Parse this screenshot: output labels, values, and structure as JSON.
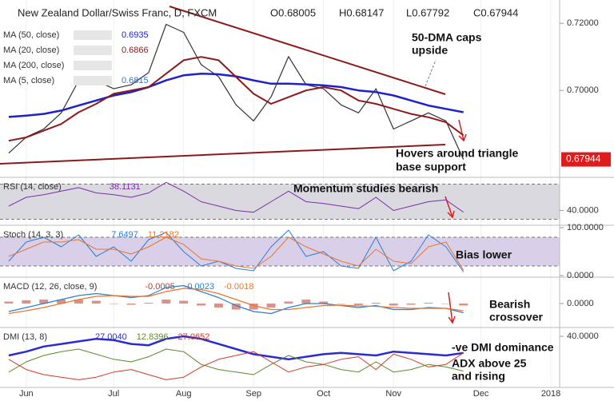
{
  "chart_data": [
    {
      "type": "line",
      "title": "New Zealand Dollar/Swiss Franc, D, FXCM",
      "ohlc": [
        "O0.68005",
        "H0.68147",
        "L0.67792",
        "C0.67944"
      ],
      "categories": [
        null,
        "Jun",
        null,
        null,
        null,
        null,
        "Jul",
        null,
        null,
        null,
        "Aug",
        null,
        null,
        null,
        "Sep",
        null,
        null,
        null,
        "Oct",
        null,
        null,
        null,
        "Nov",
        null,
        null,
        null,
        null,
        "Dec",
        null,
        null,
        null,
        "2018"
      ],
      "ylim": [
        0.676,
        0.726
      ],
      "yticks": [
        {
          "value": 0.72,
          "label": "0.72000"
        },
        {
          "value": 0.7,
          "label": "0.70000"
        }
      ],
      "last_price": {
        "value": 0.67944,
        "label": "0.67944"
      },
      "legend": [
        {
          "label": "MA (50, close)",
          "readout": "0.6935",
          "color": "#1e22c8"
        },
        {
          "label": "MA (20, close)",
          "readout": "0.6866",
          "color": "#8b1a1a"
        },
        {
          "label": "MA (200, close)",
          "readout": null,
          "color": "#888888"
        },
        {
          "label": "MA (5, close)",
          "readout": "0.6815",
          "color": "#3a6fd8"
        }
      ],
      "series": [
        {
          "name": "Close",
          "color": "#333333",
          "width": 1.2,
          "values": [
            0.6813,
            0.6861,
            0.6885,
            0.6933,
            0.7029,
            0.7029,
            0.7005,
            0.7017,
            0.7053,
            0.7197,
            0.7173,
            0.7077,
            0.7041,
            0.6957,
            0.6909,
            0.6981,
            0.7101,
            0.7017,
            0.7005,
            0.6957,
            0.6933,
            0.7005,
            0.6885,
            0.6909,
            0.6933,
            0.6909,
            0.67944,
            null,
            null,
            null,
            null,
            null
          ]
        },
        {
          "name": "MA (50, close)",
          "color": "#1e22c8",
          "width": 2.5,
          "values": [
            0.6921,
            0.6925,
            0.693,
            0.694,
            0.6955,
            0.697,
            0.6985,
            0.6995,
            0.701,
            0.703,
            0.7045,
            0.705,
            0.7048,
            0.7042,
            0.703,
            0.702,
            0.702,
            0.7018,
            0.7015,
            0.701,
            0.7,
            0.6995,
            0.6985,
            0.697,
            0.6955,
            0.6945,
            0.6935,
            null,
            null,
            null,
            null,
            null
          ]
        },
        {
          "name": "MA (20, close)",
          "color": "#8b1a1a",
          "width": 2,
          "values": [
            0.685,
            0.686,
            0.688,
            0.69,
            0.6935,
            0.696,
            0.699,
            0.7,
            0.701,
            0.705,
            0.709,
            0.71,
            0.709,
            0.704,
            0.699,
            0.696,
            0.698,
            0.7,
            0.701,
            0.7,
            0.697,
            0.696,
            0.6945,
            0.693,
            0.692,
            0.6905,
            0.6866,
            null,
            null,
            null,
            null,
            null
          ]
        }
      ]
    },
    {
      "type": "line",
      "title": "RSI (14, close)",
      "ylim": [
        25,
        75
      ],
      "yticks": [
        {
          "value": 40,
          "label": "40.0000"
        }
      ],
      "band": [
        30,
        70
      ],
      "band_color": "#d9d9df",
      "series": [
        {
          "name": "RSI",
          "color": "#7b2fa8",
          "width": 1,
          "readout": "38.1131",
          "values": [
            45,
            55,
            58,
            62,
            66,
            60,
            58,
            55,
            60,
            72,
            62,
            50,
            45,
            40,
            38,
            50,
            62,
            50,
            48,
            45,
            42,
            55,
            40,
            45,
            50,
            52,
            38.1131,
            null,
            null,
            null,
            null,
            null
          ]
        }
      ]
    },
    {
      "type": "line",
      "title": "Stoch (14, 3, 3)",
      "ylim": [
        0,
        100
      ],
      "yticks": [
        {
          "value": 100,
          "label": "100.0000"
        },
        {
          "value": 0,
          "label": "0.0000"
        }
      ],
      "band": [
        20,
        80
      ],
      "band_color": "#d9cfe8",
      "series": [
        {
          "name": "%K",
          "color": "#2a7fd4",
          "width": 1,
          "readout": "7.6497",
          "values": [
            30,
            70,
            80,
            60,
            85,
            40,
            60,
            30,
            75,
            90,
            50,
            20,
            30,
            15,
            10,
            60,
            95,
            40,
            50,
            20,
            15,
            80,
            10,
            30,
            85,
            60,
            7.6497,
            null,
            null,
            null,
            null,
            null
          ]
        },
        {
          "name": "%D",
          "color": "#e8772e",
          "width": 1,
          "readout": "11.2182",
          "values": [
            40,
            55,
            70,
            70,
            75,
            55,
            55,
            45,
            60,
            80,
            65,
            35,
            30,
            20,
            15,
            40,
            80,
            60,
            45,
            30,
            20,
            55,
            30,
            25,
            60,
            70,
            11.2182,
            null,
            null,
            null,
            null,
            null
          ]
        }
      ]
    },
    {
      "type": "line",
      "title": "MACD (12, 26, close, 9)",
      "ylim": [
        -0.006,
        0.006
      ],
      "yticks": [
        {
          "value": 0,
          "label": "0.0000"
        }
      ],
      "series": [
        {
          "name": "Histogram",
          "type": "bar",
          "color": "#c0392b",
          "readout": "-0.0005",
          "values": [
            0.0005,
            0.0008,
            0.001,
            0.001,
            0.001,
            0.0007,
            0,
            -0.0003,
            0.0002,
            0.001,
            0.0007,
            -0.0005,
            -0.001,
            -0.0015,
            -0.0015,
            -0.001,
            0.0005,
            0.001,
            0.0005,
            -0.0001,
            -0.0004,
            0.0002,
            -0.0005,
            -0.0003,
            0.0002,
            0,
            -0.0005,
            null,
            null,
            null,
            null,
            null
          ]
        },
        {
          "name": "MACD",
          "color": "#2a7fd4",
          "width": 1.2,
          "readout": "-0.0023",
          "values": [
            -0.002,
            -0.001,
            0,
            0.001,
            0.002,
            0.0025,
            0.002,
            0.0015,
            0.002,
            0.004,
            0.0045,
            0.003,
            0.0015,
            -0.0005,
            -0.002,
            -0.0025,
            -0.001,
            0,
            0,
            -0.0005,
            -0.001,
            -0.0005,
            -0.0015,
            -0.0015,
            -0.001,
            -0.0012,
            -0.0023,
            null,
            null,
            null,
            null,
            null
          ]
        },
        {
          "name": "Signal",
          "color": "#e8772e",
          "width": 1.2,
          "readout": "-0.0018",
          "values": [
            -0.0025,
            -0.0018,
            -0.001,
            0,
            0.001,
            0.0018,
            0.002,
            0.0018,
            0.0018,
            0.003,
            0.0038,
            0.0035,
            0.0025,
            0.001,
            -0.0005,
            -0.0015,
            -0.0015,
            -0.001,
            -0.0005,
            -0.0004,
            -0.0006,
            -0.0007,
            -0.001,
            -0.0012,
            -0.0012,
            -0.0012,
            -0.0018,
            null,
            null,
            null,
            null,
            null
          ]
        }
      ]
    },
    {
      "type": "line",
      "title": "DMI (13, 8)",
      "ylim": [
        0,
        45
      ],
      "yticks": [
        {
          "value": 40,
          "label": "40.0000"
        }
      ],
      "series": [
        {
          "name": "ADX",
          "color": "#2b2bd0",
          "width": 2.5,
          "readout": "27.0040",
          "values": [
            25,
            28,
            32,
            34,
            36,
            38,
            37,
            34,
            33,
            38,
            40,
            38,
            34,
            30,
            26,
            24,
            22,
            24,
            26,
            27,
            26,
            25,
            28,
            27,
            26,
            25,
            27.004,
            null,
            null,
            null,
            null,
            null
          ]
        },
        {
          "name": "+DI",
          "color": "#5a8a2a",
          "width": 1,
          "readout": "12.8396",
          "values": [
            12,
            20,
            25,
            28,
            30,
            26,
            22,
            20,
            24,
            30,
            28,
            18,
            14,
            12,
            10,
            18,
            25,
            20,
            18,
            14,
            12,
            20,
            12,
            14,
            18,
            16,
            12.8396,
            null,
            null,
            null,
            null,
            null
          ]
        },
        {
          "name": "-DI",
          "color": "#d03a2a",
          "width": 1,
          "readout": "27.0652",
          "values": [
            22,
            14,
            10,
            8,
            6,
            8,
            12,
            14,
            10,
            6,
            8,
            16,
            22,
            25,
            28,
            20,
            12,
            16,
            18,
            22,
            24,
            14,
            26,
            22,
            16,
            18,
            27.0652,
            null,
            null,
            null,
            null,
            null
          ]
        }
      ]
    }
  ],
  "annotations": [
    "50-DMA caps",
    "upside",
    "Hovers around triangle",
    "base support",
    "Momentum studies bearish",
    "Bias lower",
    "Bearish",
    "crossover",
    "-ve DMI dominance",
    "ADX above 25",
    "and rising"
  ]
}
